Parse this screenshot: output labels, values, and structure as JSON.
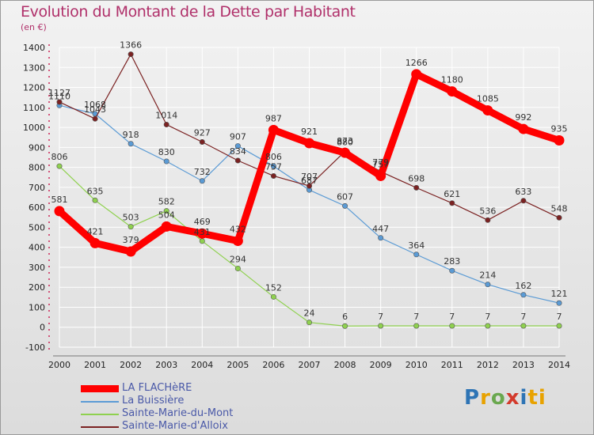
{
  "header": {
    "title": "Evolution du Montant de la Dette par Habitant",
    "unit": "(en €)"
  },
  "logo": {
    "text": "Proxiti",
    "letters": [
      "P",
      "r",
      "o",
      "x",
      "i",
      "ti"
    ]
  },
  "chart_data": {
    "type": "line",
    "x": [
      "2000",
      "2001",
      "2002",
      "2003",
      "2004",
      "2005",
      "2006",
      "2007",
      "2008",
      "2009",
      "2010",
      "2011",
      "2012",
      "2013",
      "2014"
    ],
    "ylim": [
      -100,
      1400
    ],
    "yticks": [
      "-100",
      "0",
      "100",
      "200",
      "300",
      "400",
      "500",
      "600",
      "700",
      "800",
      "900",
      "1000",
      "1100",
      "1200",
      "1300",
      "1400"
    ],
    "grid": true,
    "legend_position": "bottom-left",
    "series": [
      {
        "name": "LA FLACHèRE",
        "color": "#ff0000",
        "emphasis": true,
        "values": [
          581,
          421,
          379,
          504,
          469,
          432,
          987,
          921,
          873,
          757,
          1266,
          1180,
          1085,
          992,
          935
        ]
      },
      {
        "name": "La Buissière",
        "color": "#5b9bd5",
        "emphasis": false,
        "values": [
          1110,
          1068,
          918,
          830,
          732,
          907,
          806,
          687,
          607,
          447,
          364,
          283,
          214,
          162,
          121
        ]
      },
      {
        "name": "Sainte-Marie-du-Mont",
        "color": "#8fd14f",
        "emphasis": false,
        "values": [
          806,
          635,
          503,
          582,
          431,
          294,
          152,
          24,
          6,
          7,
          7,
          7,
          7,
          7,
          7
        ]
      },
      {
        "name": "Sainte-Marie-d'Alloix",
        "color": "#7b2222",
        "emphasis": false,
        "values": [
          1127,
          1043,
          1366,
          1014,
          927,
          834,
          757,
          707,
          880,
          779,
          698,
          621,
          536,
          633,
          548
        ]
      }
    ]
  }
}
